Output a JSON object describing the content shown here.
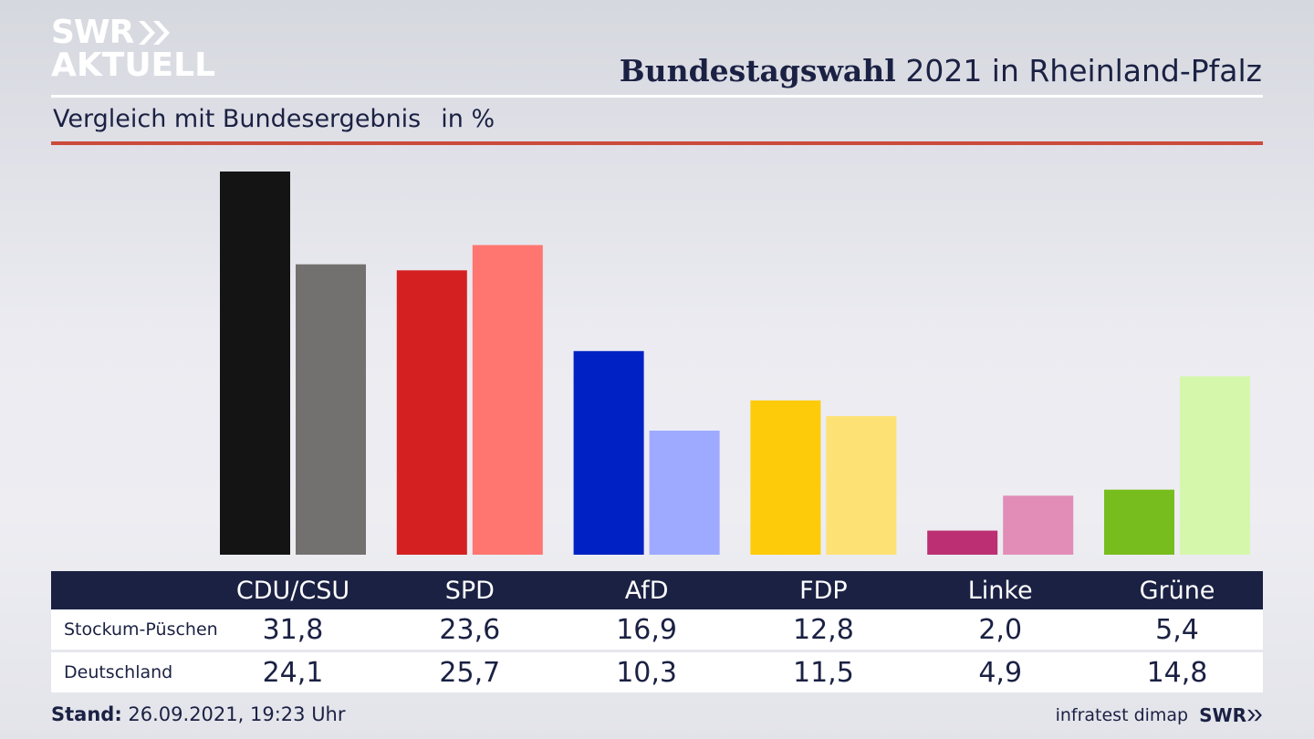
{
  "header": {
    "logo_line1": "SWR",
    "logo_line2": "AKTUELL",
    "title_bold": "Bundestagswahl",
    "title_rest": "2021 in Rheinland-Pfalz",
    "subtitle": "Vergleich mit Bundesergebnis",
    "unit": "in %"
  },
  "chart_data": {
    "type": "bar",
    "categories": [
      "CDU/CSU",
      "SPD",
      "AfD",
      "FDP",
      "Linke",
      "Grüne"
    ],
    "series": [
      {
        "name": "Stockum-Püschen",
        "values": [
          31.8,
          23.6,
          16.9,
          12.8,
          2.0,
          5.4
        ]
      },
      {
        "name": "Deutschland",
        "values": [
          24.1,
          25.7,
          10.3,
          11.5,
          4.9,
          14.8
        ]
      }
    ],
    "display_values": {
      "Stockum-Püschen": [
        "31,8",
        "23,6",
        "16,9",
        "12,8",
        "2,0",
        "5,4"
      ],
      "Deutschland": [
        "24,1",
        "25,7",
        "10,3",
        "11,5",
        "4,9",
        "14,8"
      ]
    },
    "colors": {
      "Stockum-Püschen": [
        "#141414",
        "#d42021",
        "#0022c4",
        "#fdcb0a",
        "#bc2f73",
        "#78bd1e"
      ],
      "Deutschland": [
        "#737170",
        "#ff7671",
        "#9eaaff",
        "#fde174",
        "#e18db7",
        "#d5f7ab"
      ]
    },
    "ylim": [
      0,
      32
    ],
    "grid": false,
    "legend": "table-below"
  },
  "footer": {
    "stand_label": "Stand:",
    "stand_value": "26.09.2021, 19:23 Uhr",
    "source": "infratest dimap",
    "brand": "SWR"
  }
}
